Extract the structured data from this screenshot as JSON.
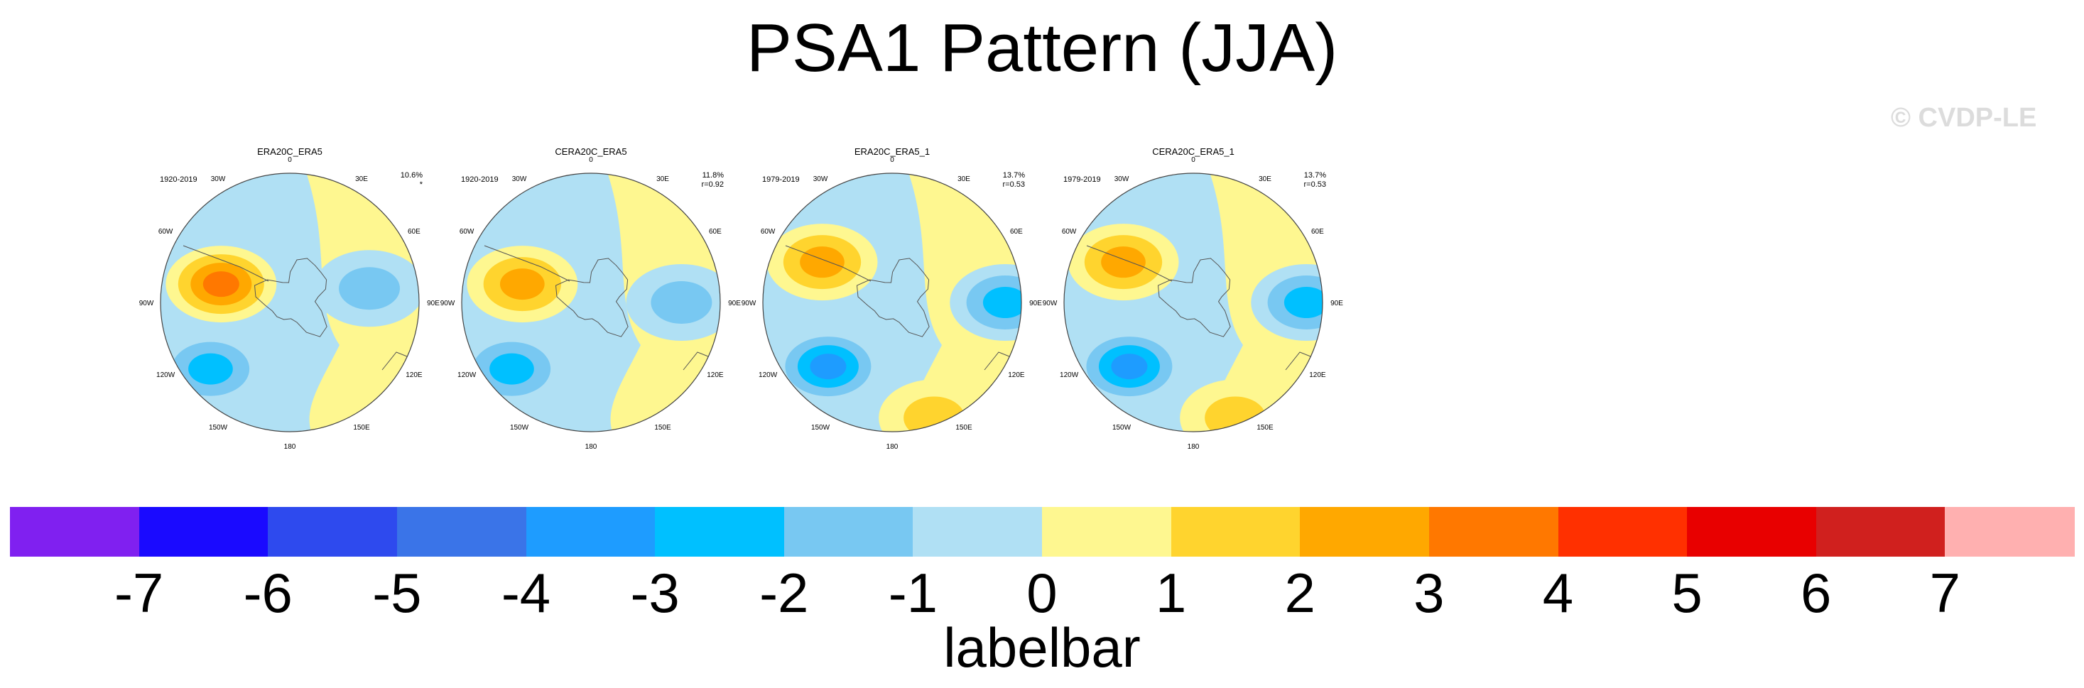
{
  "title": "PSA1 Pattern (JJA)",
  "watermark": "© CVDP-LE",
  "chart_data": {
    "type": "polar-contour-map",
    "projection": "south polar stereographic",
    "lon_labels": [
      "0",
      "30E",
      "60E",
      "90E",
      "120E",
      "150E",
      "180",
      "150W",
      "120W",
      "90W",
      "60W",
      "30W"
    ],
    "panels": [
      {
        "title": "ERA20C_ERA5",
        "period": "1920-2019",
        "pct_variance": "10.6%",
        "correlation": "*",
        "features": [
          {
            "kind": "anomaly",
            "value": 4,
            "location_lon": -75,
            "location_lat": -68
          },
          {
            "kind": "anomaly",
            "value": -3,
            "location_lon": -130,
            "location_lat": -58
          },
          {
            "kind": "anomaly",
            "value": -2,
            "location_lon": 80,
            "location_lat": -65
          }
        ]
      },
      {
        "title": "CERA20C_ERA5",
        "period": "1920-2019",
        "pct_variance": "11.8%",
        "correlation": "r=0.92",
        "features": [
          {
            "kind": "anomaly",
            "value": 3,
            "location_lon": -75,
            "location_lat": -68
          },
          {
            "kind": "anomaly",
            "value": -3,
            "location_lon": -130,
            "location_lat": -58
          },
          {
            "kind": "anomaly",
            "value": -2,
            "location_lon": 90,
            "location_lat": -62
          }
        ]
      },
      {
        "title": "ERA20C_ERA5_1",
        "period": "1979-2019",
        "pct_variance": "13.7%",
        "correlation": "r=0.53",
        "features": [
          {
            "kind": "anomaly",
            "value": 3,
            "location_lon": -60,
            "location_lat": -65
          },
          {
            "kind": "anomaly",
            "value": -4,
            "location_lon": -135,
            "location_lat": -62
          },
          {
            "kind": "anomaly",
            "value": -3,
            "location_lon": 90,
            "location_lat": -55
          },
          {
            "kind": "anomaly",
            "value": 2,
            "location_lon": 160,
            "location_lat": -52
          }
        ]
      },
      {
        "title": "CERA20C_ERA5_1",
        "period": "1979-2019",
        "pct_variance": "13.7%",
        "correlation": "r=0.53",
        "features": [
          {
            "kind": "anomaly",
            "value": 3,
            "location_lon": -60,
            "location_lat": -65
          },
          {
            "kind": "anomaly",
            "value": -4,
            "location_lon": -135,
            "location_lat": -62
          },
          {
            "kind": "anomaly",
            "value": -3,
            "location_lon": 90,
            "location_lat": -55
          },
          {
            "kind": "anomaly",
            "value": 2,
            "location_lon": 160,
            "location_lat": -52
          }
        ]
      }
    ],
    "colorbar": {
      "title": "labelbar",
      "ticks": [
        "-7",
        "-6",
        "-5",
        "-4",
        "-3",
        "-2",
        "-1",
        "0",
        "1",
        "2",
        "3",
        "4",
        "5",
        "6",
        "7"
      ],
      "colors": [
        "#8020f0",
        "#1a0aff",
        "#2e4aee",
        "#3a74e8",
        "#1e9cff",
        "#00c0ff",
        "#78c8f2",
        "#b0e0f4",
        "#fef790",
        "#ffd42e",
        "#ffa800",
        "#ff7800",
        "#ff3000",
        "#e80000",
        "#d0201e",
        "#ffb0b0"
      ]
    }
  }
}
